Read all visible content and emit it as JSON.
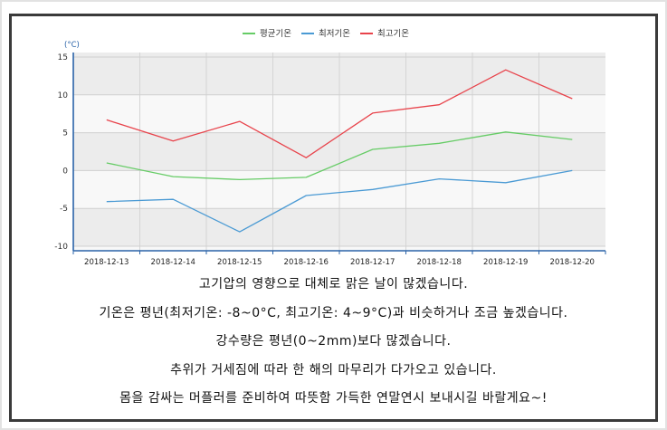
{
  "chart_data": {
    "type": "line",
    "x": [
      "2018-12-13",
      "2018-12-14",
      "2018-12-15",
      "2018-12-16",
      "2018-12-17",
      "2018-12-18",
      "2018-12-19",
      "2018-12-20"
    ],
    "series": [
      {
        "name": "평균기온",
        "color": "#66cc66",
        "values": [
          1.0,
          -0.8,
          -1.2,
          -0.9,
          2.8,
          3.6,
          5.1,
          4.1
        ]
      },
      {
        "name": "최저기온",
        "color": "#4a9ad4",
        "values": [
          -4.1,
          -3.8,
          -8.1,
          -3.3,
          -2.5,
          -1.1,
          -1.6,
          0.0
        ]
      },
      {
        "name": "최고기온",
        "color": "#e8434b",
        "values": [
          6.7,
          3.9,
          6.5,
          1.7,
          7.6,
          8.7,
          13.3,
          9.5
        ]
      }
    ],
    "ylabel": "(°C)",
    "yticks": [
      15,
      10,
      5,
      0,
      -5,
      -10
    ],
    "ylim": [
      -10,
      15
    ],
    "grid": true,
    "legend_position": "top-center"
  },
  "caption_lines": [
    "고기압의 영향으로 대체로 맑은 날이 많겠습니다.",
    "기온은 평년(최저기온: -8~0°C, 최고기온: 4~9°C)과 비슷하거나 조금 높겠습니다.",
    "강수량은 평년(0~2mm)보다 많겠습니다.",
    "추위가 거세짐에 따라 한 해의 마무리가 다가오고 있습니다.",
    "몸을 감싸는 머플러를 준비하여 따뜻함 가득한 연말연시 보내시길 바랄게요~!"
  ]
}
